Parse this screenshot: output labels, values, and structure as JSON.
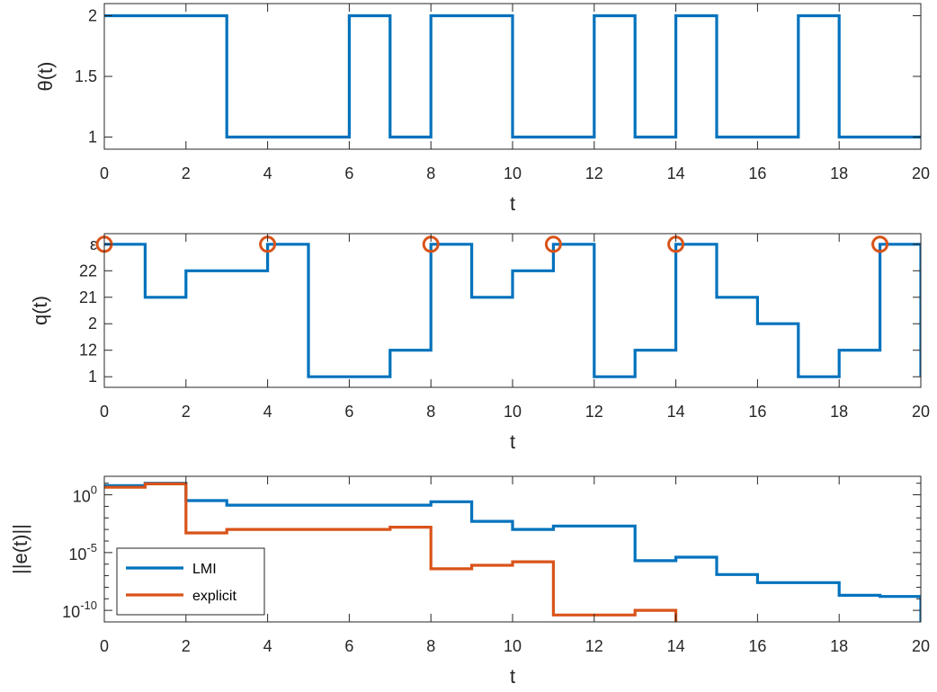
{
  "colors": {
    "blue": "#0072BD",
    "orange": "#D95319",
    "axis": "#262626"
  },
  "chart_data": [
    {
      "type": "line",
      "step": true,
      "xlabel": "t",
      "ylabel": "θ(t)",
      "xlim": [
        0,
        20
      ],
      "ylim": [
        0.9,
        2.1
      ],
      "xticks": [
        0,
        2,
        4,
        6,
        8,
        10,
        12,
        14,
        16,
        18,
        20
      ],
      "xtick_labels": [
        "0",
        "2",
        "4",
        "6",
        "8",
        "10",
        "12",
        "14",
        "16",
        "18",
        "20"
      ],
      "yticks": [
        1,
        1.5,
        2
      ],
      "ytick_labels": [
        "1",
        "1.5",
        "2"
      ],
      "log_y": false,
      "grid": false,
      "series": [
        {
          "color": "#0072BD",
          "x": [
            0,
            3,
            6,
            7,
            8,
            10,
            12,
            13,
            14,
            15,
            17,
            18,
            20
          ],
          "y": [
            2,
            1,
            2,
            1,
            2,
            1,
            2,
            1,
            2,
            1,
            2,
            1,
            1
          ]
        }
      ]
    },
    {
      "type": "line",
      "step": true,
      "xlabel": "t",
      "ylabel": "q(t)",
      "xlim": [
        0,
        20
      ],
      "ylim": [
        0.6,
        6.4
      ],
      "xticks": [
        0,
        2,
        4,
        6,
        8,
        10,
        12,
        14,
        16,
        18,
        20
      ],
      "xtick_labels": [
        "0",
        "2",
        "4",
        "6",
        "8",
        "10",
        "12",
        "14",
        "16",
        "18",
        "20"
      ],
      "yticks": [
        1,
        2,
        3,
        4,
        5,
        6
      ],
      "ytick_labels": [
        "1",
        "12",
        "2",
        "21",
        "22",
        "ε"
      ],
      "log_y": false,
      "grid": false,
      "series": [
        {
          "color": "#0072BD",
          "x": [
            0,
            1,
            2,
            4,
            5,
            7,
            8,
            9,
            10,
            11,
            12,
            13,
            14,
            15,
            16,
            17,
            18,
            19,
            20
          ],
          "y": [
            6,
            4,
            5,
            6,
            1,
            2,
            6,
            4,
            5,
            6,
            1,
            2,
            6,
            4,
            3,
            1,
            2,
            6,
            1
          ]
        }
      ],
      "markers": {
        "color": "#D95319",
        "shape": "circle",
        "x": [
          0,
          4,
          8,
          11,
          14,
          19
        ],
        "y": [
          6,
          6,
          6,
          6,
          6,
          6
        ]
      }
    },
    {
      "type": "line",
      "step": true,
      "xlabel": "t",
      "ylabel": "||e(t)||",
      "xlim": [
        0,
        20
      ],
      "ylim": [
        -11,
        1.6
      ],
      "log_y": true,
      "xticks": [
        0,
        2,
        4,
        6,
        8,
        10,
        12,
        14,
        16,
        18,
        20
      ],
      "xtick_labels": [
        "0",
        "2",
        "4",
        "6",
        "8",
        "10",
        "12",
        "14",
        "16",
        "18",
        "20"
      ],
      "yticks": [
        0,
        -5,
        -10
      ],
      "ytick_labels": [
        {
          "base": "10",
          "exp": "0"
        },
        {
          "base": "10",
          "exp": "-5"
        },
        {
          "base": "10",
          "exp": "-10"
        }
      ],
      "grid": false,
      "legend": {
        "position": "bottom-left",
        "entries": [
          "LMI",
          "explicit"
        ]
      },
      "series": [
        {
          "name": "LMI",
          "color": "#0072BD",
          "x": [
            0,
            1,
            2,
            3,
            8,
            9,
            10,
            11,
            13,
            14,
            15,
            16,
            18,
            19,
            20
          ],
          "log10_y": [
            0.8,
            1.0,
            -0.5,
            -0.9,
            -0.6,
            -2.3,
            -3.0,
            -2.7,
            -5.7,
            -5.4,
            -6.9,
            -7.6,
            -8.7,
            -8.8,
            -11.7
          ]
        },
        {
          "name": "explicit",
          "color": "#D95319",
          "x": [
            0,
            1,
            2,
            3,
            7,
            8,
            9,
            10,
            11,
            13,
            14,
            15,
            16,
            18,
            19,
            20
          ],
          "log10_y": [
            0.65,
            0.95,
            -3.3,
            -3.0,
            -2.8,
            -6.4,
            -6.1,
            -5.8,
            -10.4,
            -10.0,
            -14.4,
            -14.2,
            -14.9,
            -14.8,
            -16.9,
            -16.9
          ]
        }
      ]
    }
  ]
}
